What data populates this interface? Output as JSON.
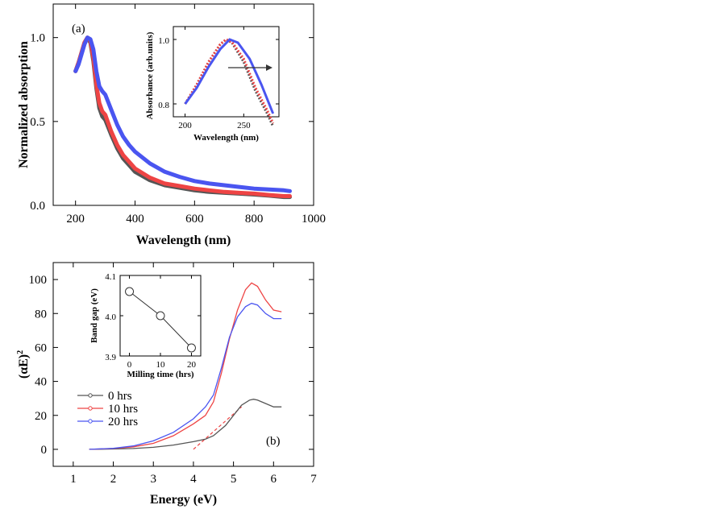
{
  "chart_data": [
    {
      "type": "line",
      "panel_label": "(a)",
      "xlabel": "Wavelength (nm)",
      "ylabel": "Normalized absorption",
      "xlim": [
        125,
        1000
      ],
      "ylim": [
        0,
        1.2
      ],
      "xticks": [
        200,
        400,
        600,
        800,
        1000
      ],
      "xtick_labels": [
        "200",
        "400",
        "600",
        "800",
        "1000"
      ],
      "yticks": [
        0,
        0.5,
        1.0
      ],
      "ytick_labels": [
        "0.0",
        "0.5",
        "1.0"
      ],
      "colors": {
        "0 hrs": "#555555",
        "10 hrs": "#ee4444",
        "20 hrs": "#4a55f0"
      },
      "series": [
        {
          "name": "0 hrs",
          "x": [
            200,
            210,
            220,
            230,
            240,
            250,
            260,
            270,
            280,
            290,
            300,
            320,
            340,
            360,
            380,
            400,
            450,
            500,
            550,
            600,
            650,
            700,
            750,
            800,
            850,
            900,
            920
          ],
          "y": [
            0.8,
            0.85,
            0.91,
            0.97,
            1.0,
            0.97,
            0.86,
            0.7,
            0.58,
            0.53,
            0.51,
            0.42,
            0.34,
            0.28,
            0.24,
            0.2,
            0.15,
            0.12,
            0.105,
            0.09,
            0.08,
            0.075,
            0.07,
            0.065,
            0.058,
            0.05,
            0.05
          ]
        },
        {
          "name": "10 hrs",
          "x": [
            200,
            210,
            220,
            230,
            240,
            250,
            260,
            270,
            280,
            290,
            300,
            320,
            340,
            360,
            380,
            400,
            450,
            500,
            550,
            600,
            650,
            700,
            750,
            800,
            850,
            900,
            920
          ],
          "y": [
            0.8,
            0.85,
            0.91,
            0.97,
            1.0,
            0.98,
            0.88,
            0.72,
            0.61,
            0.56,
            0.54,
            0.44,
            0.36,
            0.3,
            0.26,
            0.22,
            0.165,
            0.13,
            0.115,
            0.1,
            0.09,
            0.08,
            0.075,
            0.07,
            0.062,
            0.055,
            0.055
          ]
        },
        {
          "name": "20 hrs",
          "x": [
            200,
            210,
            220,
            230,
            240,
            250,
            260,
            270,
            280,
            290,
            300,
            320,
            340,
            360,
            380,
            400,
            450,
            500,
            550,
            600,
            650,
            700,
            750,
            800,
            850,
            900,
            920
          ],
          "y": [
            0.8,
            0.84,
            0.9,
            0.96,
            1.0,
            0.99,
            0.93,
            0.8,
            0.71,
            0.68,
            0.66,
            0.57,
            0.48,
            0.41,
            0.36,
            0.32,
            0.25,
            0.2,
            0.17,
            0.145,
            0.13,
            0.12,
            0.11,
            0.1,
            0.095,
            0.09,
            0.085
          ]
        }
      ],
      "inset": {
        "xlabel": "Wavelength (nm)",
        "ylabel": "Absorbance (arb.units)",
        "xlim": [
          190,
          280
        ],
        "ylim": [
          0.76,
          1.04
        ],
        "xticks": [
          200,
          250
        ],
        "xtick_labels": [
          "200",
          "250"
        ],
        "yticks": [
          0.8,
          1.0
        ],
        "ytick_labels": [
          "0.8",
          "1.0"
        ],
        "series": [
          {
            "name": "0 hrs",
            "x": [
              200,
              210,
              220,
              230,
              235,
              240,
              250,
              260,
              270,
              275
            ],
            "y": [
              0.8,
              0.86,
              0.93,
              0.985,
              1.0,
              0.99,
              0.93,
              0.84,
              0.77,
              0.73
            ]
          },
          {
            "name": "10 hrs",
            "x": [
              200,
              210,
              220,
              230,
              235,
              240,
              250,
              260,
              270,
              275
            ],
            "y": [
              0.8,
              0.86,
              0.93,
              0.985,
              1.0,
              0.992,
              0.94,
              0.85,
              0.78,
              0.74
            ]
          },
          {
            "name": "20 hrs",
            "x": [
              200,
              210,
              220,
              230,
              238,
              245,
              255,
              265,
              275
            ],
            "y": [
              0.8,
              0.85,
              0.915,
              0.97,
              1.0,
              0.99,
              0.94,
              0.86,
              0.77
            ]
          }
        ]
      }
    },
    {
      "type": "line",
      "panel_label": "(b)",
      "xlabel": "Energy (eV)",
      "ylabel": "(αE)",
      "ylabel_sup": "2",
      "xlim": [
        0.5,
        7
      ],
      "ylim": [
        -10,
        110
      ],
      "xticks": [
        1,
        2,
        3,
        4,
        5,
        6,
        7
      ],
      "xtick_labels": [
        "1",
        "2",
        "3",
        "4",
        "5",
        "6",
        "7"
      ],
      "yticks": [
        0,
        20,
        40,
        60,
        80,
        100
      ],
      "ytick_labels": [
        "0",
        "20",
        "40",
        "60",
        "80",
        "100"
      ],
      "legend": [
        "0 hrs",
        "10 hrs",
        "20 hrs"
      ],
      "legend_position": "left",
      "colors": {
        "0 hrs": "#555555",
        "10 hrs": "#ee4444",
        "20 hrs": "#4a55f0"
      },
      "series": [
        {
          "name": "0 hrs",
          "x": [
            1.4,
            2.0,
            2.5,
            3.0,
            3.5,
            4.0,
            4.3,
            4.5,
            4.8,
            5.0,
            5.2,
            5.4,
            5.5,
            5.6,
            5.8,
            6.0,
            6.2
          ],
          "y": [
            0,
            0.2,
            0.5,
            1.2,
            2.5,
            4.5,
            6,
            8,
            14,
            20,
            26,
            29,
            29.5,
            29,
            27,
            25,
            25
          ]
        },
        {
          "name": "10 hrs",
          "x": [
            1.4,
            2.0,
            2.5,
            3.0,
            3.5,
            4.0,
            4.3,
            4.5,
            4.7,
            4.9,
            5.1,
            5.3,
            5.45,
            5.6,
            5.8,
            6.0,
            6.2
          ],
          "y": [
            0,
            0.5,
            1.5,
            3.5,
            8,
            15,
            20,
            28,
            45,
            65,
            82,
            94,
            98,
            96,
            88,
            82,
            81
          ]
        },
        {
          "name": "20 hrs",
          "x": [
            1.4,
            2.0,
            2.5,
            3.0,
            3.5,
            4.0,
            4.3,
            4.5,
            4.7,
            4.9,
            5.1,
            5.3,
            5.45,
            5.6,
            5.8,
            6.0,
            6.2
          ],
          "y": [
            0,
            0.6,
            2,
            5,
            10,
            18,
            25,
            32,
            48,
            66,
            78,
            84,
            86,
            85,
            80,
            77,
            77
          ]
        }
      ],
      "fit_line": {
        "x": [
          4.0,
          5.2
        ],
        "y": [
          0,
          25
        ],
        "color": "#ee4444"
      },
      "inset": {
        "xlabel": "Milling time (hrs)",
        "ylabel": "Band gap (eV)",
        "xlim": [
          -3,
          23
        ],
        "ylim": [
          3.9,
          4.1
        ],
        "xticks": [
          0,
          10,
          20
        ],
        "xtick_labels": [
          "0",
          "10",
          "20"
        ],
        "yticks": [
          3.9,
          4.0,
          4.1
        ],
        "ytick_labels": [
          "3.9",
          "4.0",
          "4.1"
        ],
        "x": [
          0,
          10,
          20
        ],
        "y": [
          4.06,
          4.0,
          3.92
        ]
      }
    }
  ]
}
